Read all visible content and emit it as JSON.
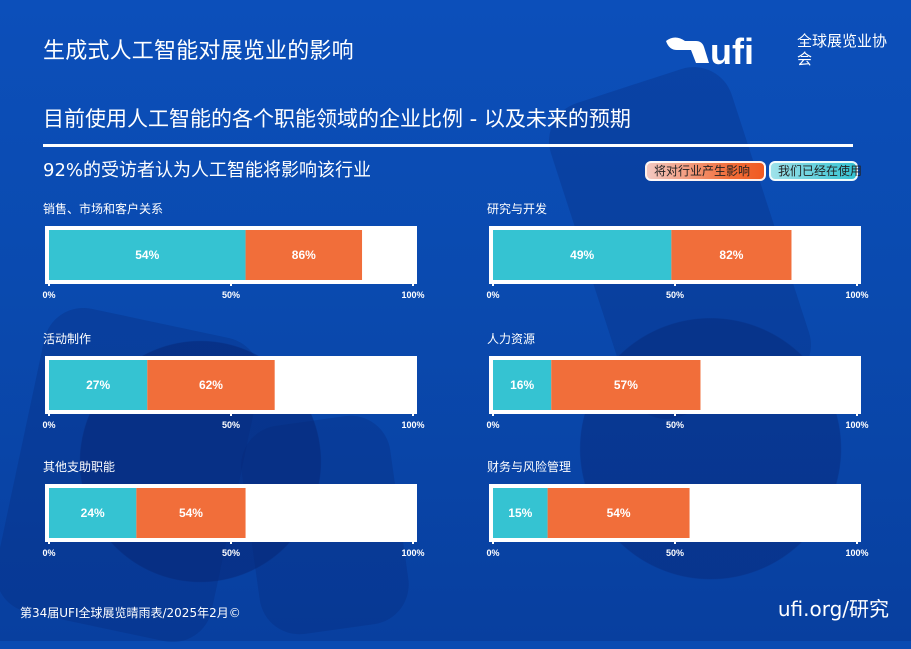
{
  "header": {
    "title": "生成式人工智能对展览业的影响",
    "logo_text": "ufi",
    "logo_org": "全球展览业协会"
  },
  "subtitle": "目前使用人工智能的各个职能领域的企业比例 - 以及未来的预期",
  "stat_text": "92%的受访者认为人工智能将影响该行业",
  "legend": {
    "future": "将对行业产生影响",
    "current": "我们已经在使用"
  },
  "colors": {
    "background": "#0a4bb2",
    "current": "#35c3d2",
    "future": "#f16e3a",
    "track": "#ffffff",
    "text": "#ffffff"
  },
  "chart_data": [
    {
      "type": "bar",
      "title": "销售、市场和客户关系",
      "xlim": [
        0,
        100
      ],
      "ticks": [
        "0%",
        "50%",
        "100%"
      ],
      "series": [
        {
          "name": "我们已经在使用",
          "value": 54,
          "label": "54%"
        },
        {
          "name": "将对行业产生影响",
          "value": 86,
          "label": "86%"
        }
      ]
    },
    {
      "type": "bar",
      "title": "研究与开发",
      "xlim": [
        0,
        100
      ],
      "ticks": [
        "0%",
        "50%",
        "100%"
      ],
      "series": [
        {
          "name": "我们已经在使用",
          "value": 49,
          "label": "49%"
        },
        {
          "name": "将对行业产生影响",
          "value": 82,
          "label": "82%"
        }
      ]
    },
    {
      "type": "bar",
      "title": "活动制作",
      "xlim": [
        0,
        100
      ],
      "ticks": [
        "0%",
        "50%",
        "100%"
      ],
      "series": [
        {
          "name": "我们已经在使用",
          "value": 27,
          "label": "27%"
        },
        {
          "name": "将对行业产生影响",
          "value": 62,
          "label": "62%"
        }
      ]
    },
    {
      "type": "bar",
      "title": "人力资源",
      "xlim": [
        0,
        100
      ],
      "ticks": [
        "0%",
        "50%",
        "100%"
      ],
      "series": [
        {
          "name": "我们已经在使用",
          "value": 16,
          "label": "16%"
        },
        {
          "name": "将对行业产生影响",
          "value": 57,
          "label": "57%"
        }
      ]
    },
    {
      "type": "bar",
      "title": "其他支助职能",
      "xlim": [
        0,
        100
      ],
      "ticks": [
        "0%",
        "50%",
        "100%"
      ],
      "series": [
        {
          "name": "我们已经在使用",
          "value": 24,
          "label": "24%"
        },
        {
          "name": "将对行业产生影响",
          "value": 54,
          "label": "54%"
        }
      ]
    },
    {
      "type": "bar",
      "title": "财务与风险管理",
      "xlim": [
        0,
        100
      ],
      "ticks": [
        "0%",
        "50%",
        "100%"
      ],
      "series": [
        {
          "name": "我们已经在使用",
          "value": 15,
          "label": "15%"
        },
        {
          "name": "将对行业产生影响",
          "value": 54,
          "label": "54%"
        }
      ]
    }
  ],
  "footer": {
    "source": "第34届UFI全球展览晴雨表/2025年2月©",
    "website": "ufi.org/研究"
  }
}
